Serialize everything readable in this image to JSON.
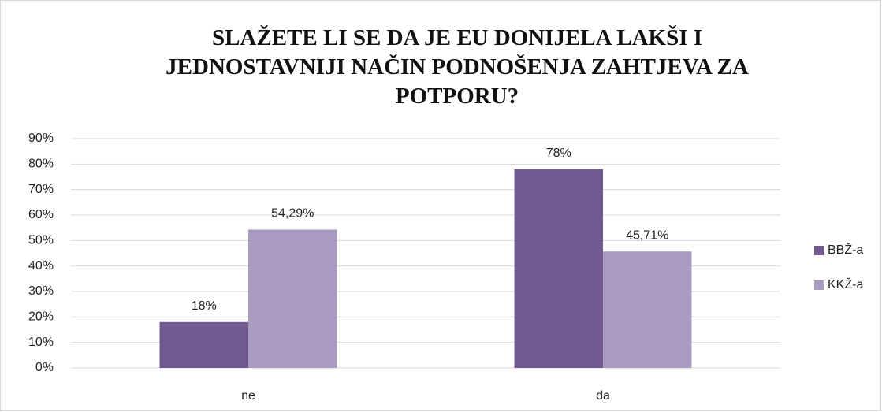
{
  "chart_data": {
    "type": "bar",
    "title": "SLAŽETE LI SE DA JE EU DONIJELA LAKŠI I JEDNOSTAVNIJI NAČIN PODNOŠENJA ZAHTJEVA ZA POTPORU?",
    "categories": [
      "ne",
      "da"
    ],
    "series": [
      {
        "name": "BBŽ-a",
        "color": "#725990",
        "values": [
          18,
          78
        ],
        "value_labels": [
          "18%",
          "78%"
        ]
      },
      {
        "name": "KKŽ-a",
        "color": "#a99bc0",
        "values": [
          54.29,
          45.71
        ],
        "value_labels": [
          "54,29%",
          "45,71%"
        ]
      }
    ],
    "ylim": [
      0,
      90
    ],
    "yticks": [
      {
        "value": 0,
        "label": "0%"
      },
      {
        "value": 10,
        "label": "10%"
      },
      {
        "value": 20,
        "label": "20%"
      },
      {
        "value": 30,
        "label": "30%"
      },
      {
        "value": 40,
        "label": "40%"
      },
      {
        "value": 50,
        "label": "50%"
      },
      {
        "value": 60,
        "label": "60%"
      },
      {
        "value": 70,
        "label": "70%"
      },
      {
        "value": 80,
        "label": "80%"
      },
      {
        "value": 90,
        "label": "90%"
      }
    ],
    "grid": true,
    "legend": "right"
  }
}
